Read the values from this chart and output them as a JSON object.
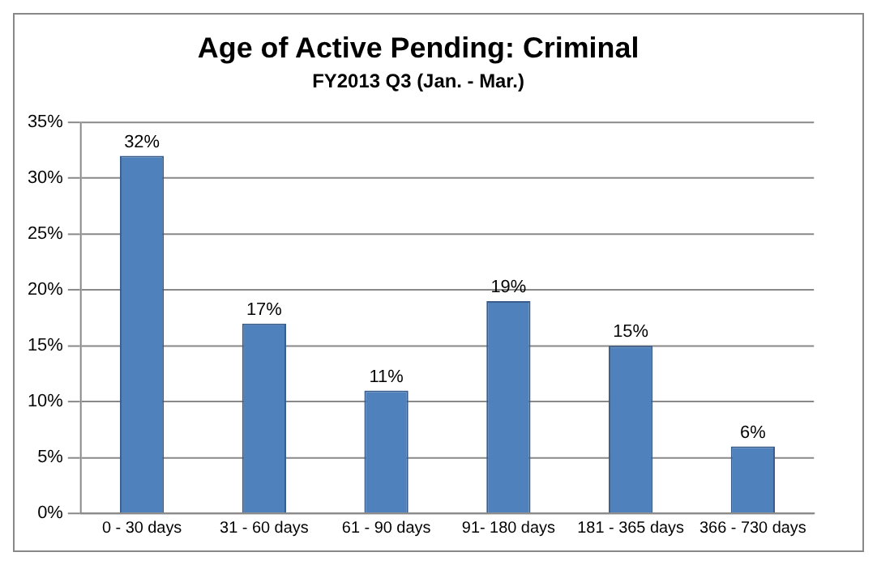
{
  "chart_data": {
    "type": "bar",
    "title": "Age of Active Pending: Criminal",
    "subtitle": "FY2013 Q3 (Jan. - Mar.)",
    "categories": [
      "0 - 30 days",
      "31 - 60 days",
      "61 - 90 days",
      "91- 180 days",
      "181 - 365 days",
      "366 - 730 days"
    ],
    "values": [
      32,
      17,
      11,
      19,
      15,
      6
    ],
    "color": "#4f81bd",
    "value_labels": [
      "32%",
      "17%",
      "11%",
      "19%",
      "15%",
      "6%"
    ],
    "ylim": [
      0,
      35
    ],
    "yticks": [
      {
        "value": 0,
        "label": "0%"
      },
      {
        "value": 5,
        "label": "5%"
      },
      {
        "value": 10,
        "label": "10%"
      },
      {
        "value": 15,
        "label": "15%"
      },
      {
        "value": 20,
        "label": "20%"
      },
      {
        "value": 25,
        "label": "25%"
      },
      {
        "value": 30,
        "label": "30%"
      },
      {
        "value": 35,
        "label": "35%"
      }
    ],
    "grid": "y",
    "legend": false
  }
}
